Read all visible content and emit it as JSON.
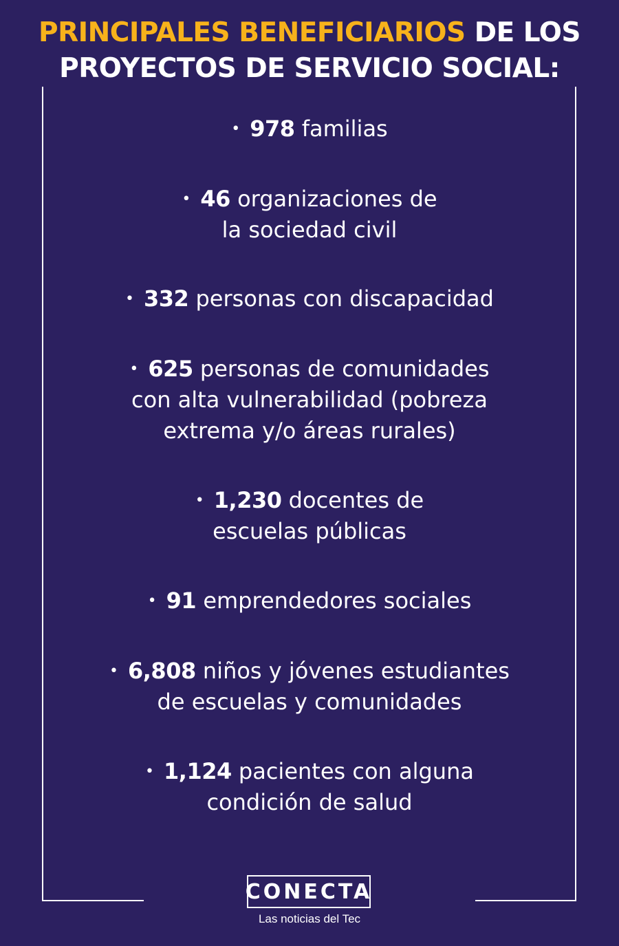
{
  "title": {
    "highlight": "PRINCIPALES BENEFICIARIOS",
    "rest_line1": "DE LOS",
    "line2": "PROYECTOS DE SERVICIO SOCIAL:",
    "highlight_color": "#f7b21b",
    "background_color": "#2c2060"
  },
  "items": [
    {
      "number": "978",
      "line1": "familias",
      "line2": ""
    },
    {
      "number": "46",
      "line1": "organizaciones de",
      "line2": "la sociedad civil"
    },
    {
      "number": "332",
      "line1": "personas con discapacidad",
      "line2": ""
    },
    {
      "number": "625",
      "line1": "personas de comunidades",
      "line2": "con alta vulnerabilidad (pobreza",
      "line3": "extrema y/o áreas rurales)"
    },
    {
      "number": "1,230",
      "line1": "docentes de",
      "line2": "escuelas públicas"
    },
    {
      "number": "91",
      "line1": "emprendedores sociales",
      "line2": ""
    },
    {
      "number": "6,808",
      "line1": "niños y jóvenes estudiantes",
      "line2": "de escuelas y comunidades"
    },
    {
      "number": "1,124",
      "line1": "pacientes con alguna",
      "line2": "condición de salud"
    }
  ],
  "logo": {
    "name": "CONECTA",
    "tagline": "Las noticias del Tec"
  }
}
